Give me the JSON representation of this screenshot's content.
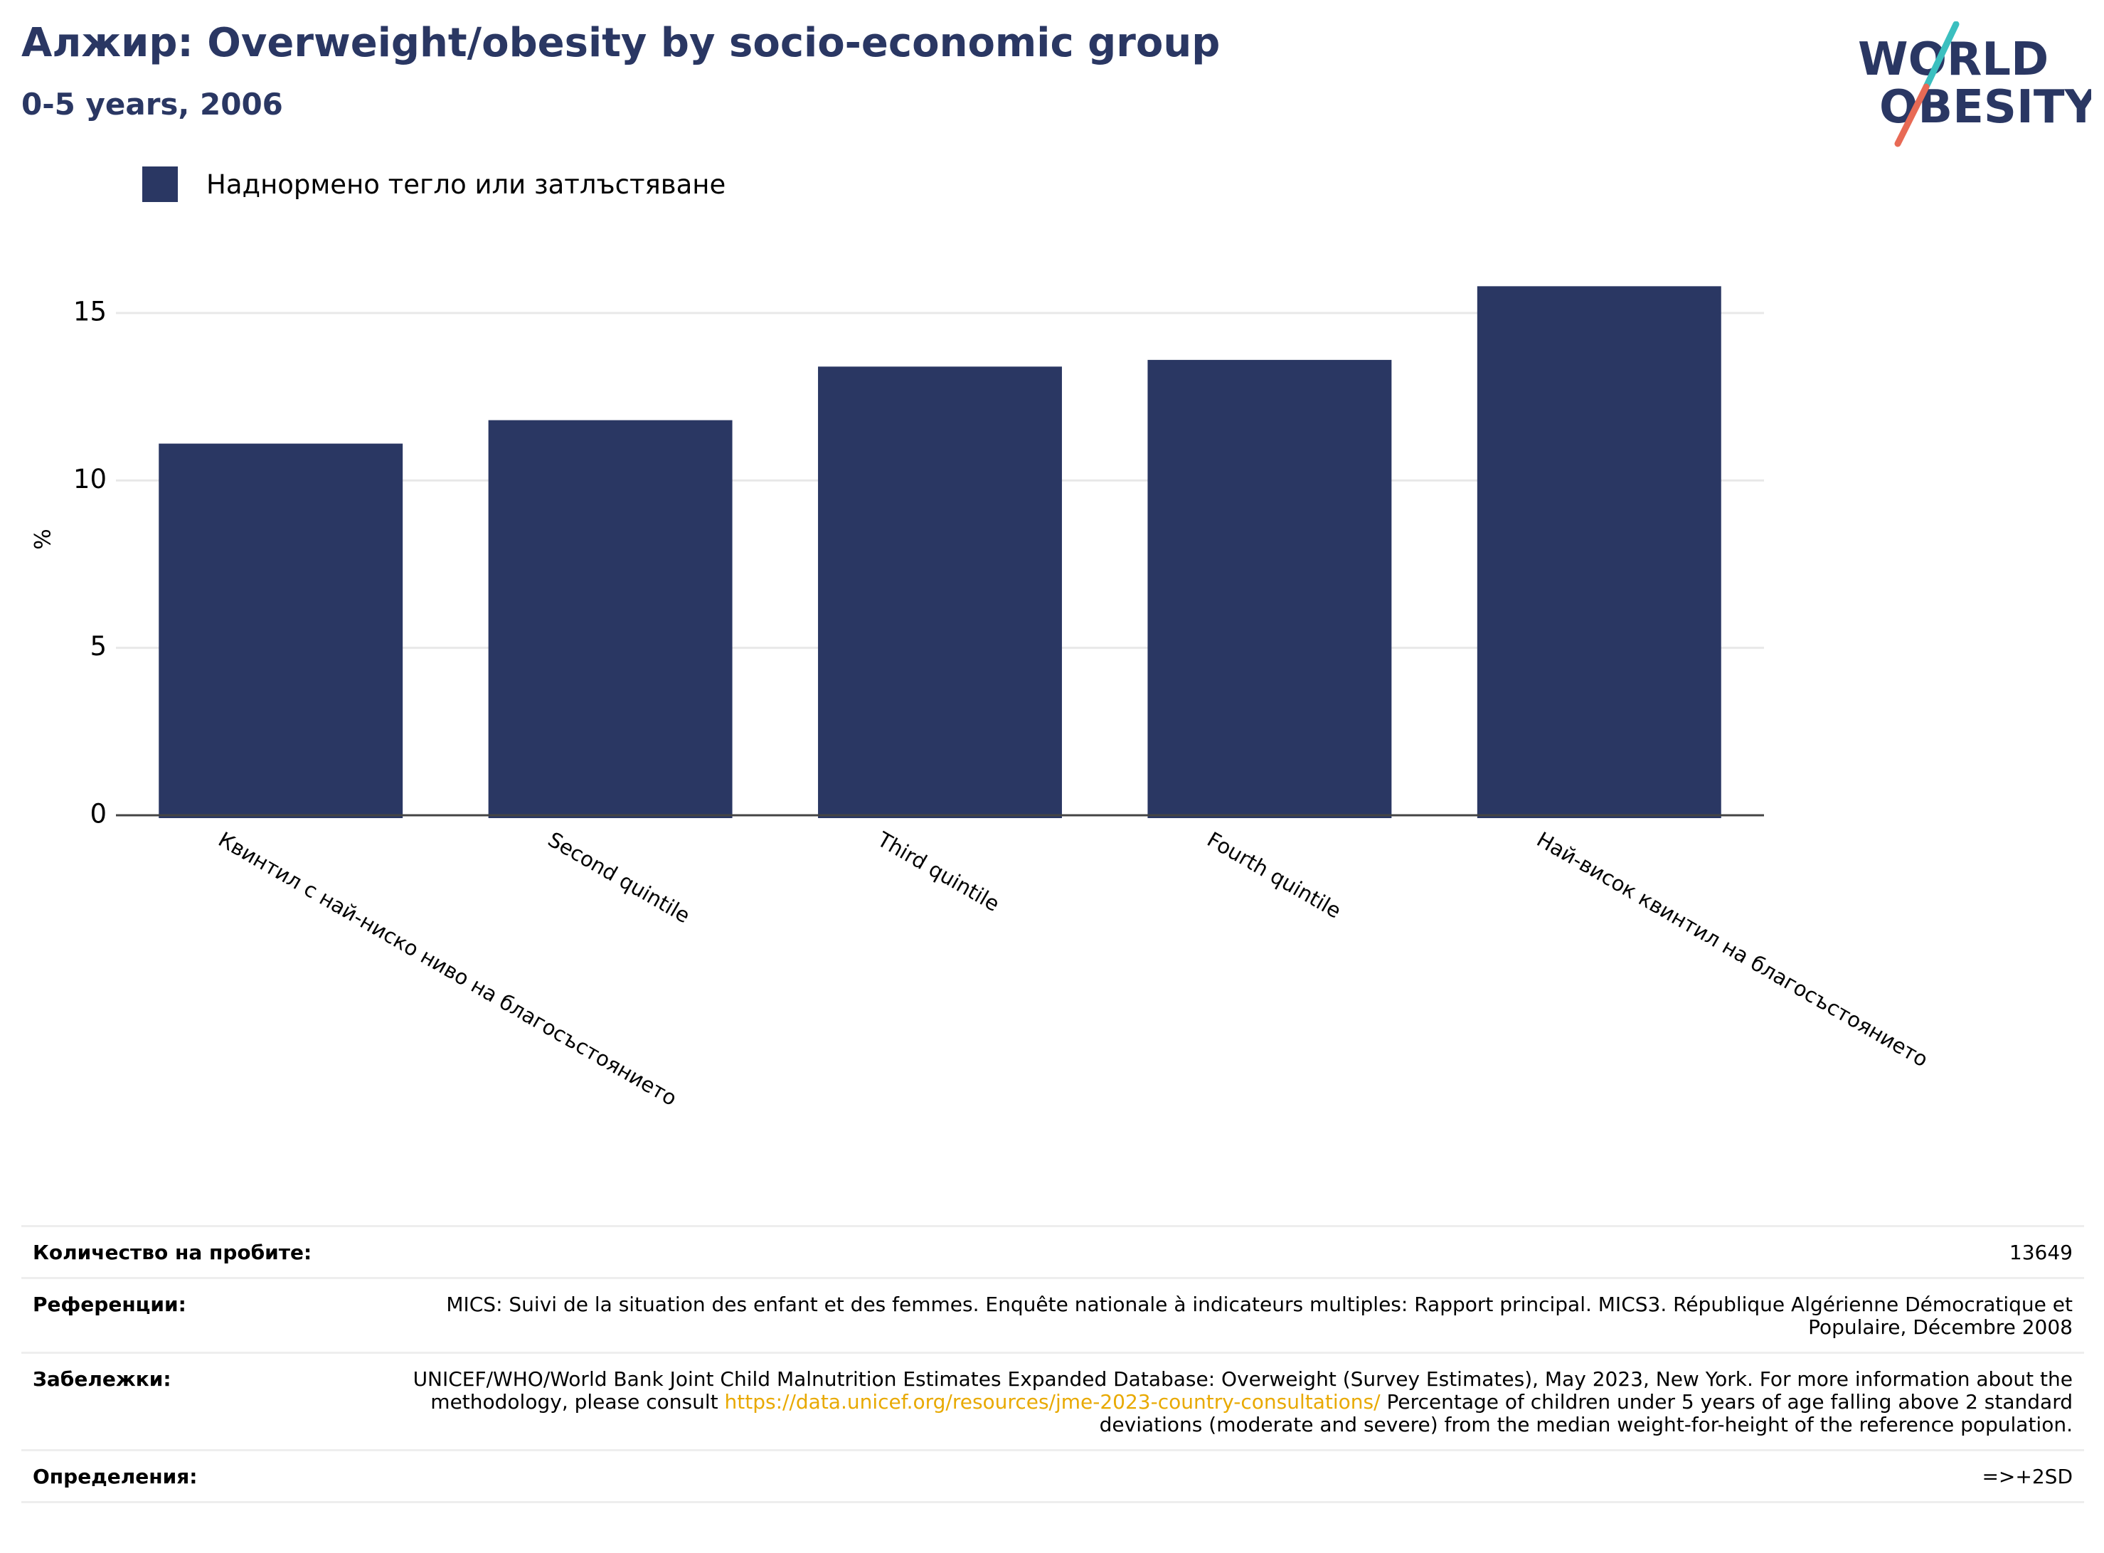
{
  "header": {
    "title": "Алжир: Overweight/obesity by socio-economic group",
    "subtitle": "0-5 years, 2006"
  },
  "logo": {
    "line1": "WORLD",
    "line2": "OBESITY",
    "colors": {
      "text": "#2a3763",
      "slash_top": "#3bbfbf",
      "slash_bottom": "#e86a55"
    }
  },
  "legend": {
    "label": "Наднормено тегло или затлъстяване",
    "color": "#2a3763"
  },
  "chart_data": {
    "type": "bar",
    "categories": [
      "Квинтил с най-ниско ниво на благосъстоянието",
      "Second quintile",
      "Third quintile",
      "Fourth quintile",
      "Най-висок квинтил на благосъстоянието"
    ],
    "series": [
      {
        "name": "Наднормено тегло или затлъстяване",
        "color": "#2a3763",
        "values": [
          11.1,
          11.8,
          13.4,
          13.6,
          15.8
        ]
      }
    ],
    "ylabel": "%",
    "xlabel": "",
    "yticks": [
      0,
      5,
      10,
      15
    ],
    "ylim": [
      0,
      16.5
    ],
    "grid": true,
    "legend_position": "top-left"
  },
  "info": {
    "sample_label": "Количество на пробите:",
    "sample_value": "13649",
    "references_label": "Референции:",
    "references_value": "MICS: Suivi de la situation des enfant et des femmes. Enquête nationale à indicateurs multiples: Rapport principal. MICS3. République Algérienne Démocratique et Populaire, Décembre 2008",
    "notes_label": "Забележки:",
    "notes_before": "UNICEF/WHO/World Bank Joint Child Malnutrition Estimates Expanded Database: Overweight (Survey Estimates), May 2023, New York. For more information about the methodology, please consult ",
    "notes_link": "https://data.unicef.org/resources/jme-2023-country-consultations/",
    "notes_after": " Percentage of children under 5 years of age falling above 2 standard deviations (moderate and severe) from the median weight-for-height of the reference population.",
    "definitions_label": "Определения:",
    "definitions_value": "=>+2SD"
  }
}
